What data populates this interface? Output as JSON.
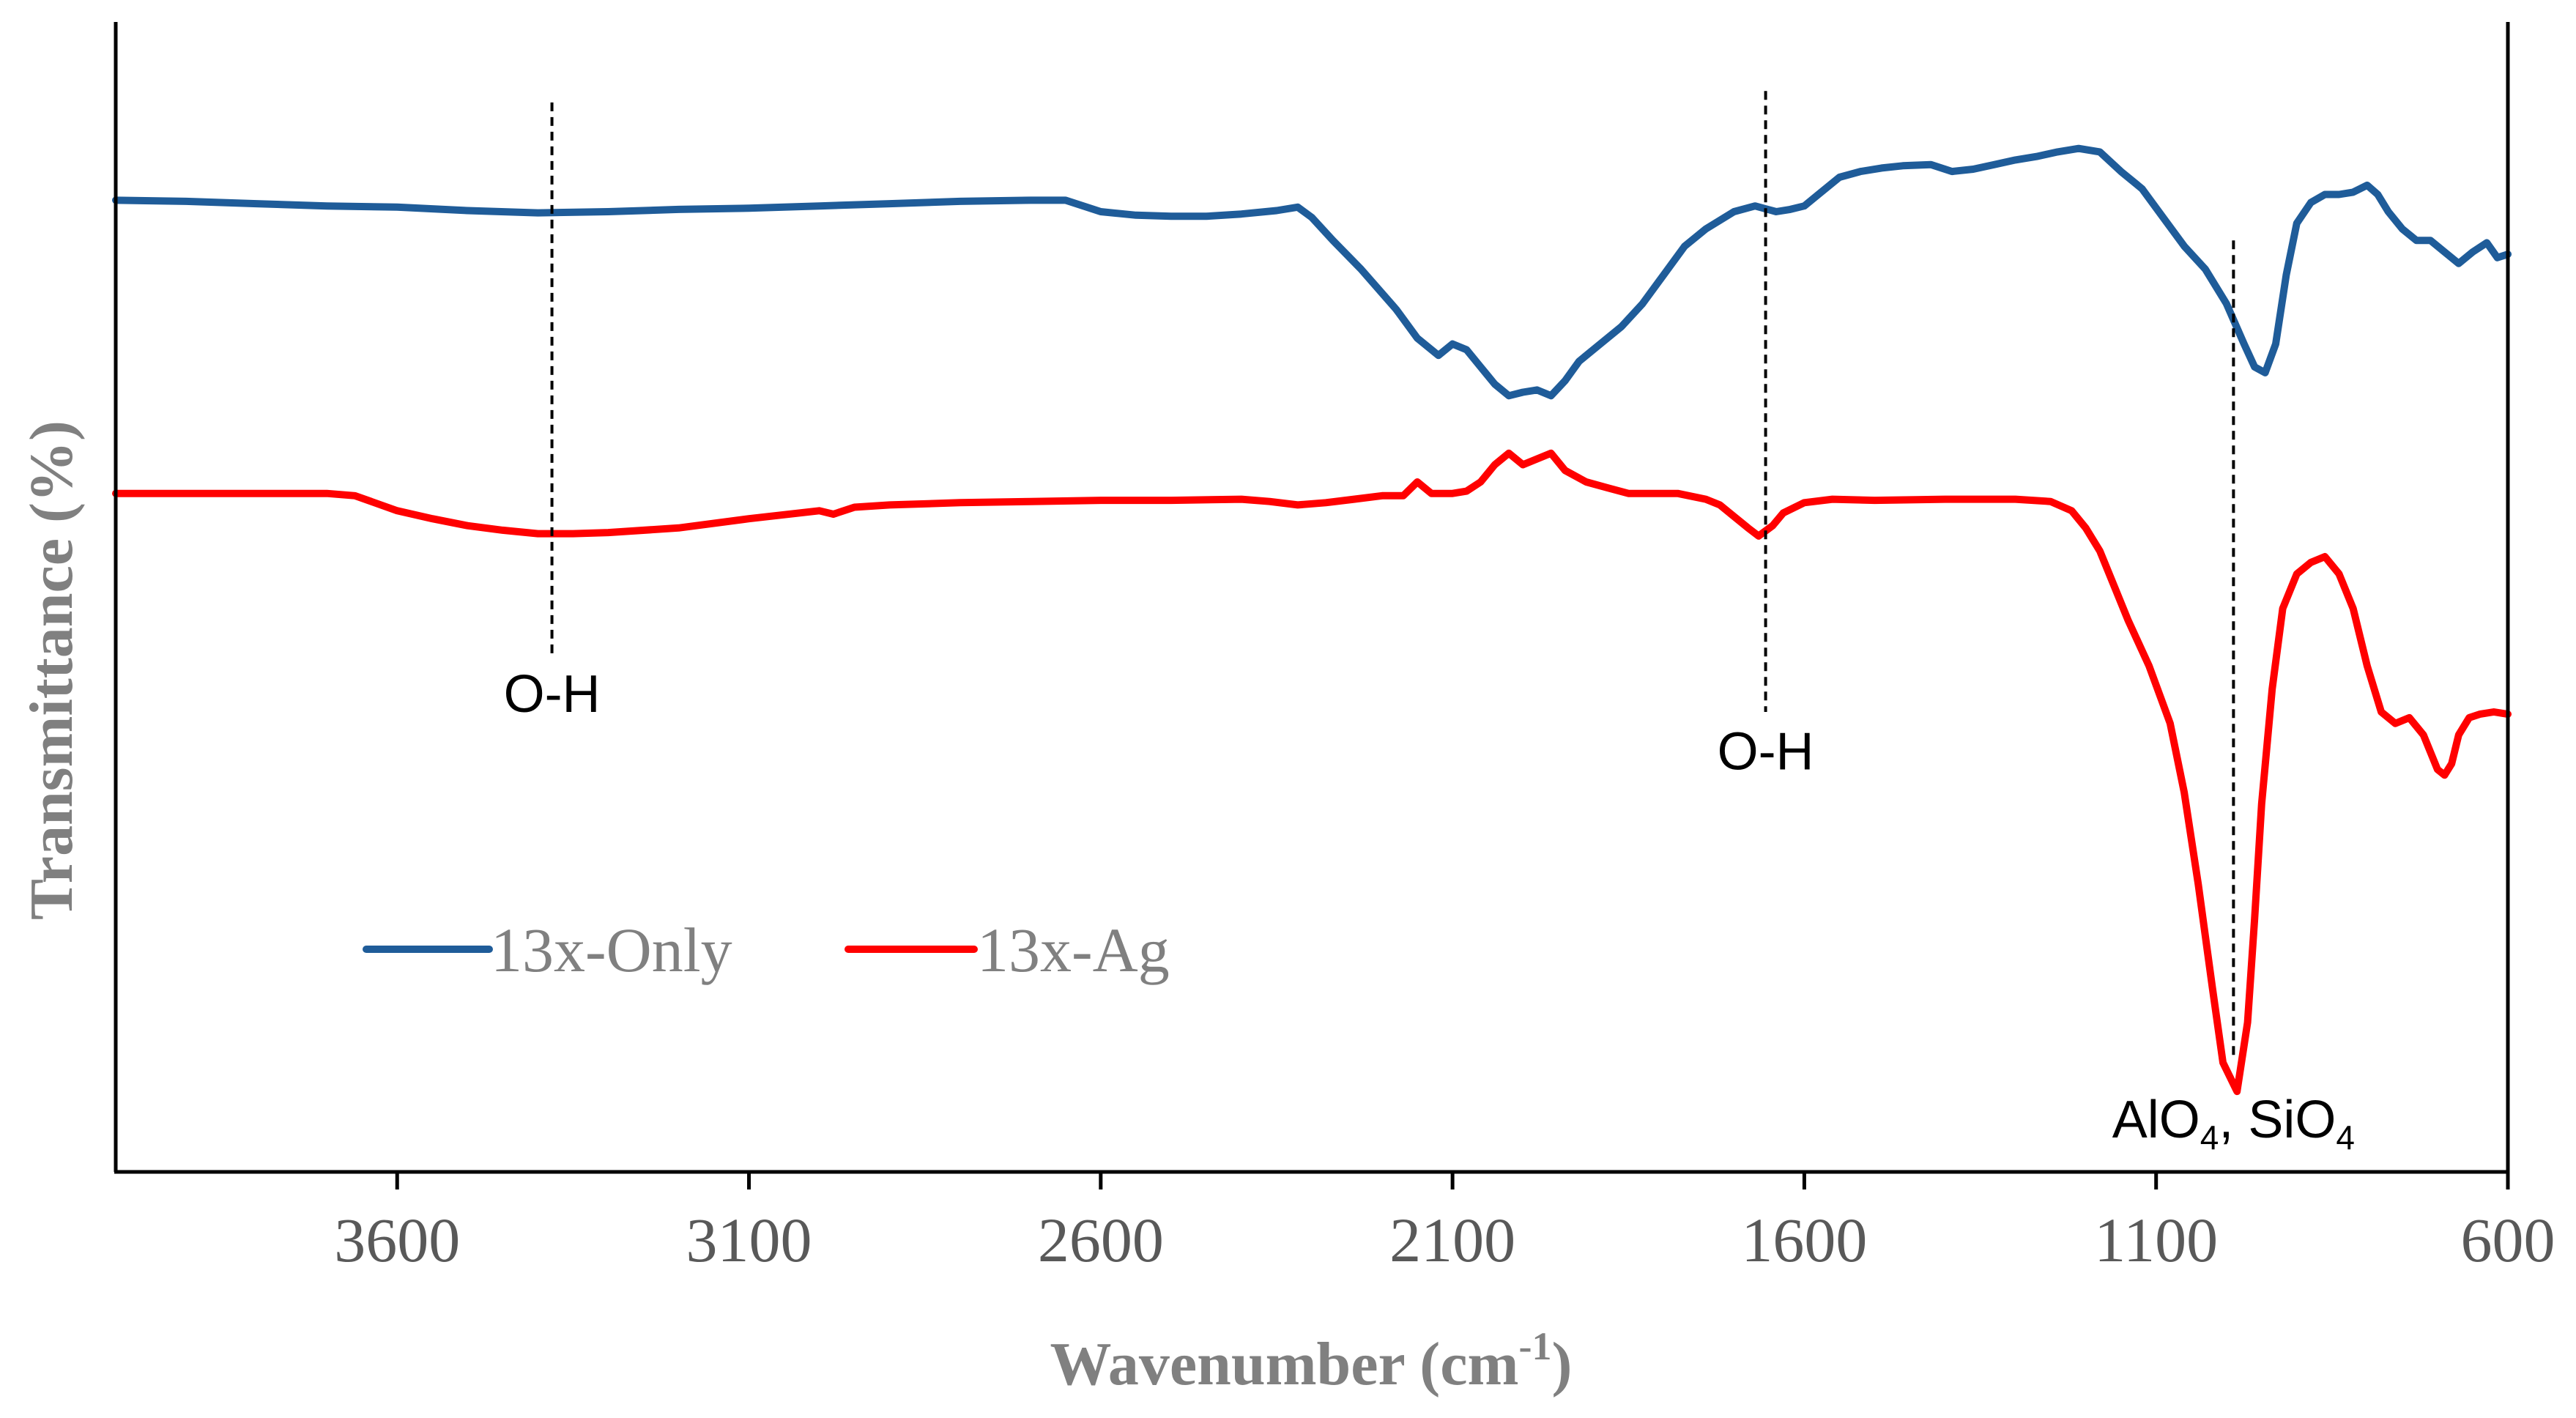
{
  "chart_data": {
    "type": "line",
    "title": "",
    "xlabel": "Wavenumber (cm",
    "xlabel_sup": "-1",
    "xlabel_end": ")",
    "ylabel": "Transmittance (%)",
    "xlim": [
      4000,
      600
    ],
    "x_reversed": true,
    "ylim": [
      0,
      100
    ],
    "y_ticks_shown": false,
    "grid": false,
    "x_ticks": [
      3600,
      3100,
      2600,
      2100,
      1600,
      1100,
      600
    ],
    "x_tick_labels": [
      "3600",
      "3100",
      "2600",
      "2100",
      "1600",
      "1100",
      "600"
    ],
    "legend_position": "bottom-left",
    "series": [
      {
        "name": "13x-Only",
        "color": "#1F5C99",
        "points": [
          [
            4000,
            84.5
          ],
          [
            3900,
            84.4
          ],
          [
            3800,
            84.2
          ],
          [
            3700,
            84.0
          ],
          [
            3600,
            83.9
          ],
          [
            3500,
            83.6
          ],
          [
            3400,
            83.4
          ],
          [
            3300,
            83.5
          ],
          [
            3200,
            83.7
          ],
          [
            3100,
            83.8
          ],
          [
            3000,
            84.0
          ],
          [
            2900,
            84.2
          ],
          [
            2800,
            84.4
          ],
          [
            2700,
            84.5
          ],
          [
            2650,
            84.5
          ],
          [
            2600,
            83.5
          ],
          [
            2550,
            83.2
          ],
          [
            2500,
            83.1
          ],
          [
            2450,
            83.1
          ],
          [
            2400,
            83.3
          ],
          [
            2350,
            83.6
          ],
          [
            2320,
            83.9
          ],
          [
            2300,
            83.0
          ],
          [
            2270,
            81.0
          ],
          [
            2230,
            78.5
          ],
          [
            2180,
            75.0
          ],
          [
            2150,
            72.5
          ],
          [
            2120,
            71.0
          ],
          [
            2100,
            72.0
          ],
          [
            2080,
            71.5
          ],
          [
            2060,
            70.0
          ],
          [
            2040,
            68.5
          ],
          [
            2020,
            67.5
          ],
          [
            2000,
            67.8
          ],
          [
            1980,
            68.0
          ],
          [
            1960,
            67.5
          ],
          [
            1940,
            68.8
          ],
          [
            1920,
            70.5
          ],
          [
            1890,
            72.0
          ],
          [
            1860,
            73.5
          ],
          [
            1830,
            75.5
          ],
          [
            1800,
            78.0
          ],
          [
            1770,
            80.5
          ],
          [
            1740,
            82.0
          ],
          [
            1700,
            83.5
          ],
          [
            1670,
            84.0
          ],
          [
            1640,
            83.5
          ],
          [
            1620,
            83.7
          ],
          [
            1600,
            84.0
          ],
          [
            1580,
            85.0
          ],
          [
            1550,
            86.5
          ],
          [
            1520,
            87.0
          ],
          [
            1490,
            87.3
          ],
          [
            1460,
            87.5
          ],
          [
            1420,
            87.6
          ],
          [
            1390,
            87.0
          ],
          [
            1360,
            87.2
          ],
          [
            1330,
            87.6
          ],
          [
            1300,
            88.0
          ],
          [
            1270,
            88.3
          ],
          [
            1240,
            88.7
          ],
          [
            1210,
            89.0
          ],
          [
            1180,
            88.7
          ],
          [
            1150,
            87.0
          ],
          [
            1120,
            85.5
          ],
          [
            1090,
            83.0
          ],
          [
            1060,
            80.5
          ],
          [
            1030,
            78.5
          ],
          [
            1000,
            75.5
          ],
          [
            975,
            72.0
          ],
          [
            960,
            70.0
          ],
          [
            945,
            69.5
          ],
          [
            930,
            72.0
          ],
          [
            915,
            78.0
          ],
          [
            900,
            82.5
          ],
          [
            880,
            84.3
          ],
          [
            860,
            85.0
          ],
          [
            840,
            85.0
          ],
          [
            820,
            85.2
          ],
          [
            800,
            85.8
          ],
          [
            785,
            85.0
          ],
          [
            770,
            83.5
          ],
          [
            750,
            82.0
          ],
          [
            730,
            81.0
          ],
          [
            710,
            81.0
          ],
          [
            690,
            80.0
          ],
          [
            670,
            79.0
          ],
          [
            650,
            80.0
          ],
          [
            630,
            80.8
          ],
          [
            615,
            79.5
          ],
          [
            600,
            79.8
          ]
        ]
      },
      {
        "name": "13x-Ag",
        "color": "#FF0000",
        "points": [
          [
            4000,
            59.0
          ],
          [
            3900,
            59.0
          ],
          [
            3800,
            59.0
          ],
          [
            3700,
            59.0
          ],
          [
            3660,
            58.8
          ],
          [
            3600,
            57.5
          ],
          [
            3550,
            56.8
          ],
          [
            3500,
            56.2
          ],
          [
            3450,
            55.8
          ],
          [
            3400,
            55.5
          ],
          [
            3350,
            55.5
          ],
          [
            3300,
            55.6
          ],
          [
            3200,
            56.0
          ],
          [
            3100,
            56.8
          ],
          [
            3000,
            57.5
          ],
          [
            2980,
            57.2
          ],
          [
            2950,
            57.8
          ],
          [
            2900,
            58.0
          ],
          [
            2800,
            58.2
          ],
          [
            2700,
            58.3
          ],
          [
            2600,
            58.4
          ],
          [
            2500,
            58.4
          ],
          [
            2400,
            58.5
          ],
          [
            2360,
            58.3
          ],
          [
            2320,
            58.0
          ],
          [
            2280,
            58.2
          ],
          [
            2240,
            58.5
          ],
          [
            2200,
            58.8
          ],
          [
            2170,
            58.8
          ],
          [
            2150,
            60.0
          ],
          [
            2130,
            59.0
          ],
          [
            2100,
            59.0
          ],
          [
            2080,
            59.2
          ],
          [
            2060,
            60.0
          ],
          [
            2040,
            61.5
          ],
          [
            2020,
            62.5
          ],
          [
            2000,
            61.5
          ],
          [
            1980,
            62.0
          ],
          [
            1960,
            62.5
          ],
          [
            1940,
            61.0
          ],
          [
            1910,
            60.0
          ],
          [
            1880,
            59.5
          ],
          [
            1850,
            59.0
          ],
          [
            1820,
            59.0
          ],
          [
            1780,
            59.0
          ],
          [
            1740,
            58.5
          ],
          [
            1720,
            58.0
          ],
          [
            1700,
            57.0
          ],
          [
            1680,
            56.0
          ],
          [
            1665,
            55.3
          ],
          [
            1645,
            56.2
          ],
          [
            1630,
            57.3
          ],
          [
            1600,
            58.2
          ],
          [
            1560,
            58.5
          ],
          [
            1500,
            58.4
          ],
          [
            1400,
            58.5
          ],
          [
            1300,
            58.5
          ],
          [
            1250,
            58.3
          ],
          [
            1220,
            57.5
          ],
          [
            1200,
            56.0
          ],
          [
            1180,
            54.0
          ],
          [
            1160,
            51.0
          ],
          [
            1140,
            48.0
          ],
          [
            1110,
            44.0
          ],
          [
            1080,
            39.0
          ],
          [
            1060,
            33.0
          ],
          [
            1040,
            25.0
          ],
          [
            1020,
            16.0
          ],
          [
            1005,
            9.5
          ],
          [
            985,
            7.0
          ],
          [
            970,
            13.0
          ],
          [
            960,
            22.0
          ],
          [
            950,
            32.0
          ],
          [
            935,
            42.0
          ],
          [
            920,
            49.0
          ],
          [
            900,
            52.0
          ],
          [
            880,
            53.0
          ],
          [
            860,
            53.5
          ],
          [
            840,
            52.0
          ],
          [
            820,
            49.0
          ],
          [
            800,
            44.0
          ],
          [
            780,
            40.0
          ],
          [
            760,
            39.0
          ],
          [
            740,
            39.5
          ],
          [
            720,
            38.0
          ],
          [
            700,
            35.0
          ],
          [
            690,
            34.5
          ],
          [
            680,
            35.5
          ],
          [
            670,
            38.0
          ],
          [
            655,
            39.5
          ],
          [
            640,
            39.8
          ],
          [
            620,
            40.0
          ],
          [
            600,
            39.8
          ]
        ]
      }
    ],
    "annotations": [
      {
        "label": "O-H",
        "x": 3380,
        "line_from": 93,
        "line_to": 45,
        "text_y": 40,
        "sub": "",
        "after": "",
        "sub2": ""
      },
      {
        "label": "O-H",
        "x": 1655,
        "line_from": 94,
        "line_to": 40,
        "text_y": 35,
        "sub": "",
        "after": "",
        "sub2": ""
      },
      {
        "label": "AlO",
        "x": 990,
        "line_from": 81,
        "line_to": 10,
        "text_y": 3,
        "sub": "4",
        "after": ", SiO",
        "sub2": "4"
      }
    ]
  }
}
